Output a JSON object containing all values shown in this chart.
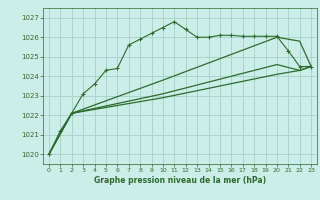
{
  "title": "Graphe pression niveau de la mer (hPa)",
  "bg_color": "#cceee8",
  "grid_color": "#aad4cc",
  "line_color": "#2d6b2d",
  "xlim": [
    -0.5,
    23.5
  ],
  "ylim": [
    1019.5,
    1027.5
  ],
  "yticks": [
    1020,
    1021,
    1022,
    1023,
    1024,
    1025,
    1026,
    1027
  ],
  "xticks": [
    0,
    1,
    2,
    3,
    4,
    5,
    6,
    7,
    8,
    9,
    10,
    11,
    12,
    13,
    14,
    15,
    16,
    17,
    18,
    19,
    20,
    21,
    22,
    23
  ],
  "line1_x": [
    0,
    1,
    2,
    3,
    4,
    5,
    6,
    7,
    8,
    9,
    10,
    11,
    12,
    13,
    14,
    15,
    16,
    17,
    18,
    19,
    20,
    21,
    22,
    23
  ],
  "line1_y": [
    1020.0,
    1021.2,
    1022.1,
    1023.1,
    1023.6,
    1024.3,
    1024.4,
    1025.6,
    1025.9,
    1026.2,
    1026.5,
    1026.8,
    1026.4,
    1026.0,
    1026.0,
    1026.1,
    1026.1,
    1026.05,
    1026.05,
    1026.05,
    1026.05,
    1025.3,
    1024.5,
    1024.5
  ],
  "line2_x": [
    0,
    2,
    10,
    20,
    22,
    23
  ],
  "line2_y": [
    1020.0,
    1022.1,
    1023.8,
    1026.0,
    1025.8,
    1024.5
  ],
  "line3_x": [
    0,
    2,
    10,
    20,
    22,
    23
  ],
  "line3_y": [
    1020.0,
    1022.1,
    1023.1,
    1024.6,
    1024.3,
    1024.5
  ],
  "line4_x": [
    0,
    2,
    10,
    20,
    22,
    23
  ],
  "line4_y": [
    1020.0,
    1022.1,
    1022.9,
    1024.1,
    1024.3,
    1024.5
  ]
}
